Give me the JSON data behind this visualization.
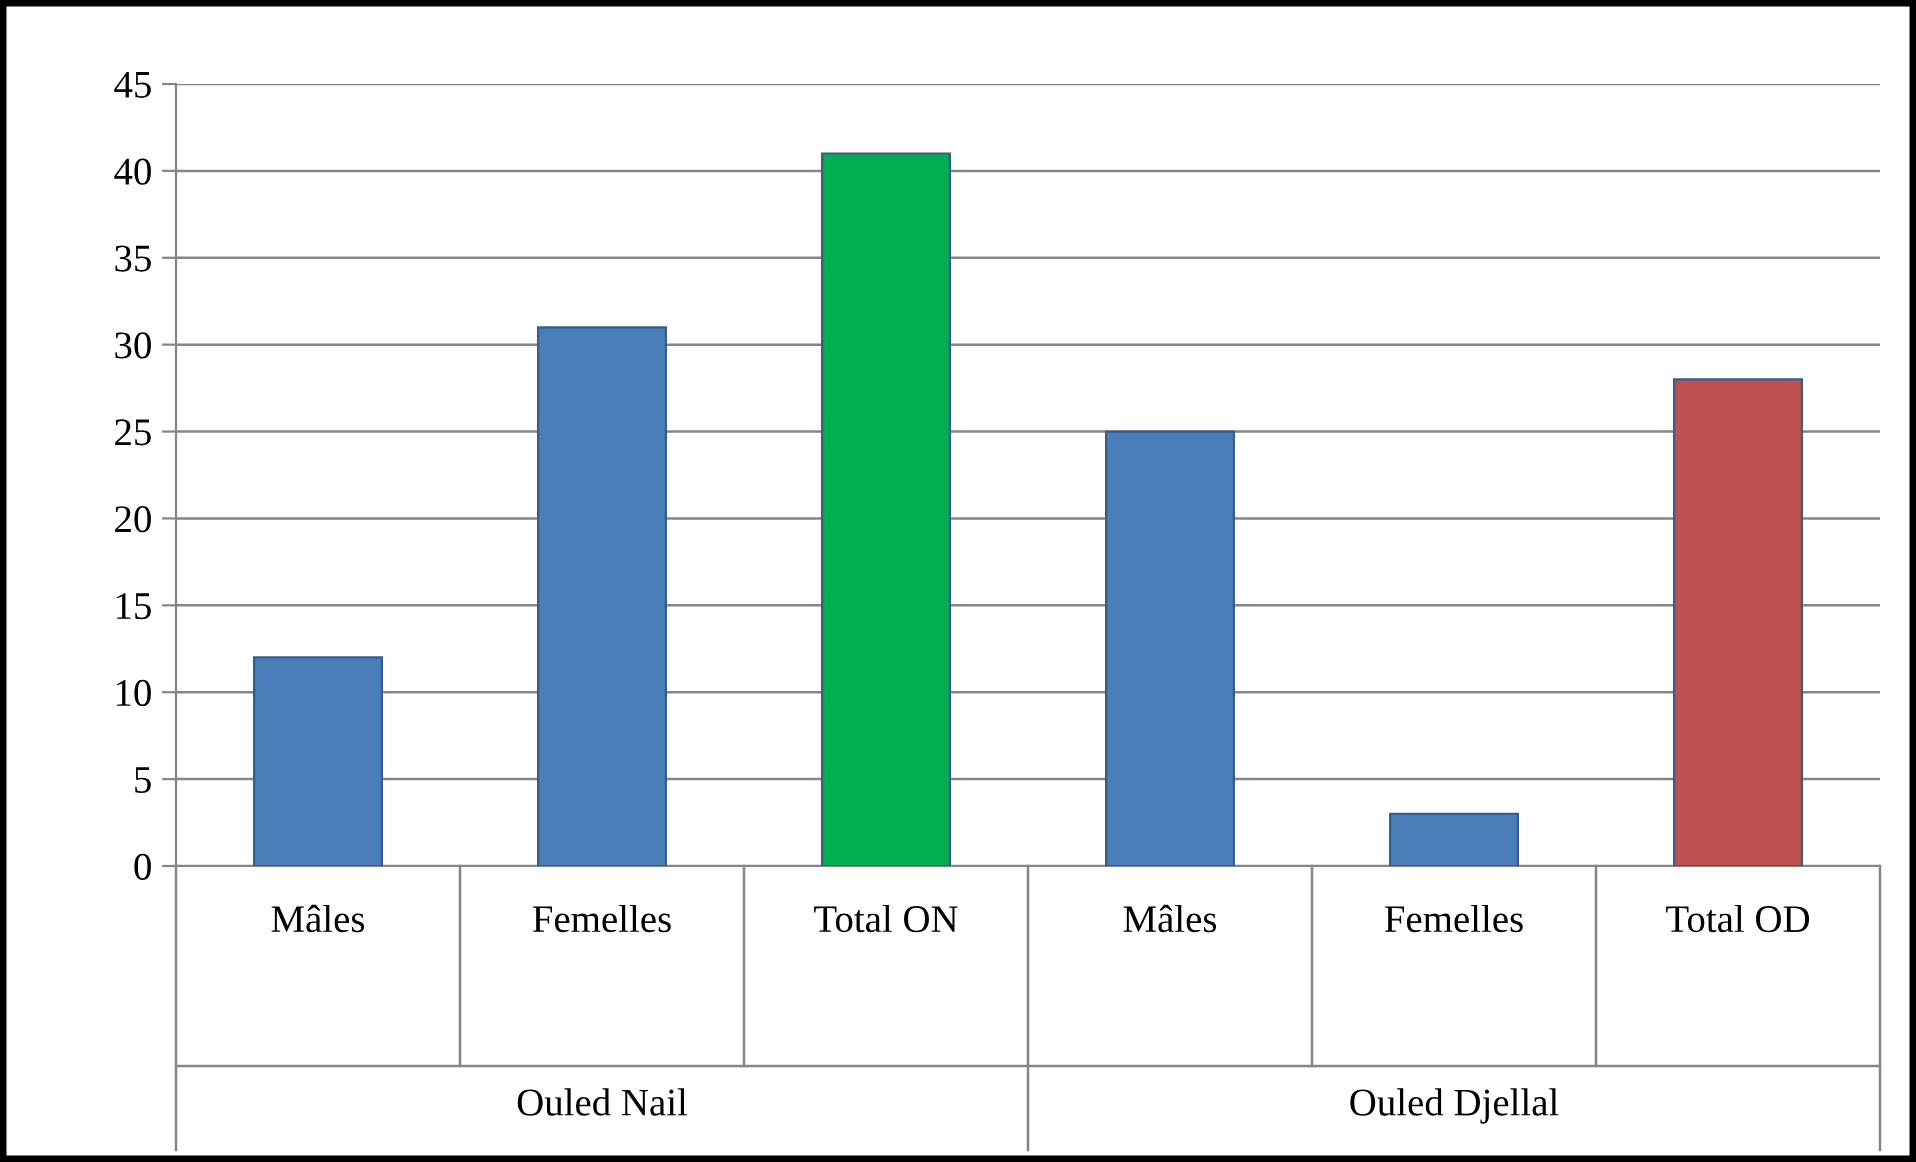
{
  "chart_data": {
    "type": "bar",
    "categories": [
      "Mâles",
      "Femelles",
      "Total ON",
      "Mâles",
      "Femelles",
      "Total OD"
    ],
    "values": [
      12,
      31,
      41,
      25,
      3,
      28
    ],
    "colors": [
      "#4a7ebb",
      "#4a7ebb",
      "#00b050",
      "#4a7ebb",
      "#4a7ebb",
      "#c0504d"
    ],
    "ylim": [
      0,
      45
    ],
    "yticks": [
      0,
      5,
      10,
      15,
      20,
      25,
      30,
      35,
      40,
      45
    ],
    "grid": "y",
    "annotations": [
      "Ouled Nail",
      "Ouled Djellal"
    ]
  }
}
